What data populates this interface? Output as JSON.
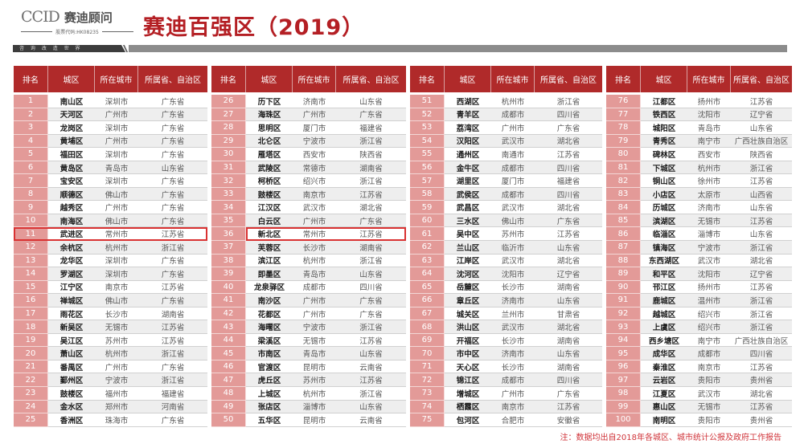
{
  "header": {
    "logo_en": "CCID",
    "logo_cn": "赛迪顾问",
    "stock_code": "股票代码:HK08235",
    "slogan": "咨 询 改 造 世 界",
    "title": "赛迪百强区（2019）"
  },
  "table": {
    "columns": [
      "排名",
      "城区",
      "所在城市",
      "所属省、自治区"
    ],
    "highlighted_ranks": [
      11,
      36
    ],
    "groups": [
      {
        "rows": [
          {
            "rank": "1",
            "district": "南山区",
            "city": "深圳市",
            "province": "广东省"
          },
          {
            "rank": "2",
            "district": "天河区",
            "city": "广州市",
            "province": "广东省"
          },
          {
            "rank": "3",
            "district": "龙岗区",
            "city": "深圳市",
            "province": "广东省"
          },
          {
            "rank": "4",
            "district": "黄埔区",
            "city": "广州市",
            "province": "广东省"
          },
          {
            "rank": "5",
            "district": "福田区",
            "city": "深圳市",
            "province": "广东省"
          },
          {
            "rank": "6",
            "district": "黄岛区",
            "city": "青岛市",
            "province": "山东省"
          },
          {
            "rank": "7",
            "district": "宝安区",
            "city": "深圳市",
            "province": "广东省"
          },
          {
            "rank": "8",
            "district": "顺德区",
            "city": "佛山市",
            "province": "广东省"
          },
          {
            "rank": "9",
            "district": "越秀区",
            "city": "广州市",
            "province": "广东省"
          },
          {
            "rank": "10",
            "district": "南海区",
            "city": "佛山市",
            "province": "广东省"
          },
          {
            "rank": "11",
            "district": "武进区",
            "city": "常州市",
            "province": "江苏省"
          },
          {
            "rank": "12",
            "district": "余杭区",
            "city": "杭州市",
            "province": "浙江省"
          },
          {
            "rank": "13",
            "district": "龙华区",
            "city": "深圳市",
            "province": "广东省"
          },
          {
            "rank": "14",
            "district": "罗湖区",
            "city": "深圳市",
            "province": "广东省"
          },
          {
            "rank": "15",
            "district": "江宁区",
            "city": "南京市",
            "province": "江苏省"
          },
          {
            "rank": "16",
            "district": "禅城区",
            "city": "佛山市",
            "province": "广东省"
          },
          {
            "rank": "17",
            "district": "雨花区",
            "city": "长沙市",
            "province": "湖南省"
          },
          {
            "rank": "18",
            "district": "新吴区",
            "city": "无锡市",
            "province": "江苏省"
          },
          {
            "rank": "19",
            "district": "吴江区",
            "city": "苏州市",
            "province": "江苏省"
          },
          {
            "rank": "20",
            "district": "萧山区",
            "city": "杭州市",
            "province": "浙江省"
          },
          {
            "rank": "21",
            "district": "番禺区",
            "city": "广州市",
            "province": "广东省"
          },
          {
            "rank": "22",
            "district": "鄞州区",
            "city": "宁波市",
            "province": "浙江省"
          },
          {
            "rank": "23",
            "district": "鼓楼区",
            "city": "福州市",
            "province": "福建省"
          },
          {
            "rank": "24",
            "district": "金水区",
            "city": "郑州市",
            "province": "河南省"
          },
          {
            "rank": "25",
            "district": "香洲区",
            "city": "珠海市",
            "province": "广东省"
          }
        ]
      },
      {
        "rows": [
          {
            "rank": "26",
            "district": "历下区",
            "city": "济南市",
            "province": "山东省"
          },
          {
            "rank": "27",
            "district": "海珠区",
            "city": "广州市",
            "province": "广东省"
          },
          {
            "rank": "28",
            "district": "思明区",
            "city": "厦门市",
            "province": "福建省"
          },
          {
            "rank": "29",
            "district": "北仑区",
            "city": "宁波市",
            "province": "浙江省"
          },
          {
            "rank": "30",
            "district": "雁塔区",
            "city": "西安市",
            "province": "陕西省"
          },
          {
            "rank": "31",
            "district": "武陵区",
            "city": "常德市",
            "province": "湖南省"
          },
          {
            "rank": "32",
            "district": "柯桥区",
            "city": "绍兴市",
            "province": "浙江省"
          },
          {
            "rank": "33",
            "district": "鼓楼区",
            "city": "南京市",
            "province": "江苏省"
          },
          {
            "rank": "34",
            "district": "江汉区",
            "city": "武汉市",
            "province": "湖北省"
          },
          {
            "rank": "35",
            "district": "白云区",
            "city": "广州市",
            "province": "广东省"
          },
          {
            "rank": "36",
            "district": "新北区",
            "city": "常州市",
            "province": "江苏省"
          },
          {
            "rank": "37",
            "district": "芙蓉区",
            "city": "长沙市",
            "province": "湖南省"
          },
          {
            "rank": "38",
            "district": "滨江区",
            "city": "杭州市",
            "province": "浙江省"
          },
          {
            "rank": "39",
            "district": "即墨区",
            "city": "青岛市",
            "province": "山东省"
          },
          {
            "rank": "40",
            "district": "龙泉驿区",
            "city": "成都市",
            "province": "四川省"
          },
          {
            "rank": "41",
            "district": "南沙区",
            "city": "广州市",
            "province": "广东省"
          },
          {
            "rank": "42",
            "district": "花都区",
            "city": "广州市",
            "province": "广东省"
          },
          {
            "rank": "43",
            "district": "海曙区",
            "city": "宁波市",
            "province": "浙江省"
          },
          {
            "rank": "44",
            "district": "梁溪区",
            "city": "无锡市",
            "province": "江苏省"
          },
          {
            "rank": "45",
            "district": "市南区",
            "city": "青岛市",
            "province": "山东省"
          },
          {
            "rank": "46",
            "district": "官渡区",
            "city": "昆明市",
            "province": "云南省"
          },
          {
            "rank": "47",
            "district": "虎丘区",
            "city": "苏州市",
            "province": "江苏省"
          },
          {
            "rank": "48",
            "district": "上城区",
            "city": "杭州市",
            "province": "浙江省"
          },
          {
            "rank": "49",
            "district": "张店区",
            "city": "淄博市",
            "province": "山东省"
          },
          {
            "rank": "50",
            "district": "五华区",
            "city": "昆明市",
            "province": "云南省"
          }
        ]
      },
      {
        "rows": [
          {
            "rank": "51",
            "district": "西湖区",
            "city": "杭州市",
            "province": "浙江省"
          },
          {
            "rank": "52",
            "district": "青羊区",
            "city": "成都市",
            "province": "四川省"
          },
          {
            "rank": "53",
            "district": "荔湾区",
            "city": "广州市",
            "province": "广东省"
          },
          {
            "rank": "54",
            "district": "汉阳区",
            "city": "武汉市",
            "province": "湖北省"
          },
          {
            "rank": "55",
            "district": "通州区",
            "city": "南通市",
            "province": "江苏省"
          },
          {
            "rank": "56",
            "district": "金牛区",
            "city": "成都市",
            "province": "四川省"
          },
          {
            "rank": "57",
            "district": "湖里区",
            "city": "厦门市",
            "province": "福建省"
          },
          {
            "rank": "58",
            "district": "武侯区",
            "city": "成都市",
            "province": "四川省"
          },
          {
            "rank": "59",
            "district": "武昌区",
            "city": "武汉市",
            "province": "湖北省"
          },
          {
            "rank": "60",
            "district": "三水区",
            "city": "佛山市",
            "province": "广东省"
          },
          {
            "rank": "61",
            "district": "吴中区",
            "city": "苏州市",
            "province": "江苏省"
          },
          {
            "rank": "62",
            "district": "兰山区",
            "city": "临沂市",
            "province": "山东省"
          },
          {
            "rank": "63",
            "district": "江岸区",
            "city": "武汉市",
            "province": "湖北省"
          },
          {
            "rank": "64",
            "district": "沈河区",
            "city": "沈阳市",
            "province": "辽宁省"
          },
          {
            "rank": "65",
            "district": "岳麓区",
            "city": "长沙市",
            "province": "湖南省"
          },
          {
            "rank": "66",
            "district": "章丘区",
            "city": "济南市",
            "province": "山东省"
          },
          {
            "rank": "67",
            "district": "城关区",
            "city": "兰州市",
            "province": "甘肃省"
          },
          {
            "rank": "68",
            "district": "洪山区",
            "city": "武汉市",
            "province": "湖北省"
          },
          {
            "rank": "69",
            "district": "开福区",
            "city": "长沙市",
            "province": "湖南省"
          },
          {
            "rank": "70",
            "district": "市中区",
            "city": "济南市",
            "province": "山东省"
          },
          {
            "rank": "71",
            "district": "天心区",
            "city": "长沙市",
            "province": "湖南省"
          },
          {
            "rank": "72",
            "district": "锦江区",
            "city": "成都市",
            "province": "四川省"
          },
          {
            "rank": "73",
            "district": "增城区",
            "city": "广州市",
            "province": "广东省"
          },
          {
            "rank": "74",
            "district": "栖霞区",
            "city": "南京市",
            "province": "江苏省"
          },
          {
            "rank": "75",
            "district": "包河区",
            "city": "合肥市",
            "province": "安徽省"
          }
        ]
      },
      {
        "rows": [
          {
            "rank": "76",
            "district": "江都区",
            "city": "扬州市",
            "province": "江苏省"
          },
          {
            "rank": "77",
            "district": "铁西区",
            "city": "沈阳市",
            "province": "辽宁省"
          },
          {
            "rank": "78",
            "district": "城阳区",
            "city": "青岛市",
            "province": "山东省"
          },
          {
            "rank": "79",
            "district": "青秀区",
            "city": "南宁市",
            "province": "广西壮族自治区"
          },
          {
            "rank": "80",
            "district": "碑林区",
            "city": "西安市",
            "province": "陕西省"
          },
          {
            "rank": "81",
            "district": "下城区",
            "city": "杭州市",
            "province": "浙江省"
          },
          {
            "rank": "82",
            "district": "铜山区",
            "city": "徐州市",
            "province": "江苏省"
          },
          {
            "rank": "83",
            "district": "小店区",
            "city": "太原市",
            "province": "山西省"
          },
          {
            "rank": "84",
            "district": "历城区",
            "city": "济南市",
            "province": "山东省"
          },
          {
            "rank": "85",
            "district": "滨湖区",
            "city": "无锡市",
            "province": "江苏省"
          },
          {
            "rank": "86",
            "district": "临淄区",
            "city": "淄博市",
            "province": "山东省"
          },
          {
            "rank": "87",
            "district": "镇海区",
            "city": "宁波市",
            "province": "浙江省"
          },
          {
            "rank": "88",
            "district": "东西湖区",
            "city": "武汉市",
            "province": "湖北省"
          },
          {
            "rank": "89",
            "district": "和平区",
            "city": "沈阳市",
            "province": "辽宁省"
          },
          {
            "rank": "90",
            "district": "邗江区",
            "city": "扬州市",
            "province": "江苏省"
          },
          {
            "rank": "91",
            "district": "鹿城区",
            "city": "温州市",
            "province": "浙江省"
          },
          {
            "rank": "92",
            "district": "越城区",
            "city": "绍兴市",
            "province": "浙江省"
          },
          {
            "rank": "93",
            "district": "上虞区",
            "city": "绍兴市",
            "province": "浙江省"
          },
          {
            "rank": "94",
            "district": "西乡塘区",
            "city": "南宁市",
            "province": "广西壮族自治区"
          },
          {
            "rank": "95",
            "district": "成华区",
            "city": "成都市",
            "province": "四川省"
          },
          {
            "rank": "96",
            "district": "秦淮区",
            "city": "南京市",
            "province": "江苏省"
          },
          {
            "rank": "97",
            "district": "云岩区",
            "city": "贵阳市",
            "province": "贵州省"
          },
          {
            "rank": "98",
            "district": "江夏区",
            "city": "武汉市",
            "province": "湖北省"
          },
          {
            "rank": "99",
            "district": "惠山区",
            "city": "无锡市",
            "province": "江苏省"
          },
          {
            "rank": "100",
            "district": "南明区",
            "city": "贵阳市",
            "province": "贵州省"
          }
        ]
      }
    ]
  },
  "footnote": "注：数据均出自2018年各城区、城市统计公报及政府工作报告",
  "colors": {
    "title": "#b41f24",
    "header_bg": "#b02a2a",
    "rank_bg": "#e39a98",
    "highlight_border": "#d93232",
    "footnote": "#d0343a"
  }
}
